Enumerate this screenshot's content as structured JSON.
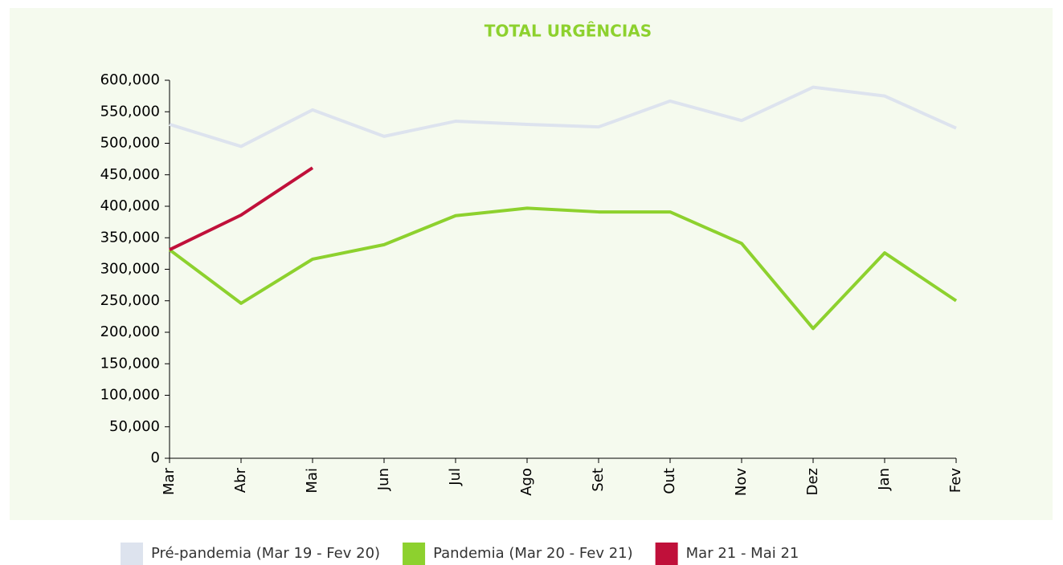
{
  "chart_data": {
    "type": "line",
    "title": "TOTAL URGÊNCIAS",
    "categories": [
      "Mar",
      "Abr",
      "Mai",
      "Jun",
      "Jul",
      "Ago",
      "Set",
      "Out",
      "Nov",
      "Dez",
      "Jan",
      "Fev"
    ],
    "series": [
      {
        "name": "Pré-pandemia (Mar 19 - Fev 20)",
        "color": "#dde3ee",
        "values": [
          530000,
          495000,
          553000,
          511000,
          535000,
          530000,
          526000,
          567000,
          536000,
          589000,
          575000,
          524000
        ]
      },
      {
        "name": "Pandemia (Mar 20 - Fev 21)",
        "color": "#8dd12e",
        "values": [
          331000,
          246000,
          316000,
          339000,
          385000,
          397000,
          391000,
          391000,
          341000,
          206000,
          326000,
          250000
        ]
      },
      {
        "name": "Mar 21 - Mai 21",
        "color": "#c0103a",
        "values": [
          331000,
          386000,
          461000,
          null,
          null,
          null,
          null,
          null,
          null,
          null,
          null,
          null
        ]
      }
    ],
    "ylim": [
      0,
      600000
    ],
    "yticks": [
      0,
      {
        "value": 50000,
        "label": "50,000"
      },
      {
        "value": 100000,
        "label": "100,000"
      },
      {
        "value": 150000,
        "label": "150,000"
      },
      {
        "value": 200000,
        "label": "200,000"
      },
      {
        "value": 250000,
        "label": "250,000"
      },
      {
        "value": 300000,
        "label": "300,000"
      },
      {
        "value": 350000,
        "label": "350,000"
      },
      {
        "value": 400000,
        "label": "400,000"
      },
      {
        "value": 450000,
        "label": "450,000"
      },
      {
        "value": 500000,
        "label": "500,000"
      },
      {
        "value": 550000,
        "label": "550,000"
      },
      {
        "value": 600000,
        "label": "600,000"
      }
    ],
    "grid": false,
    "legend": "bottom"
  }
}
